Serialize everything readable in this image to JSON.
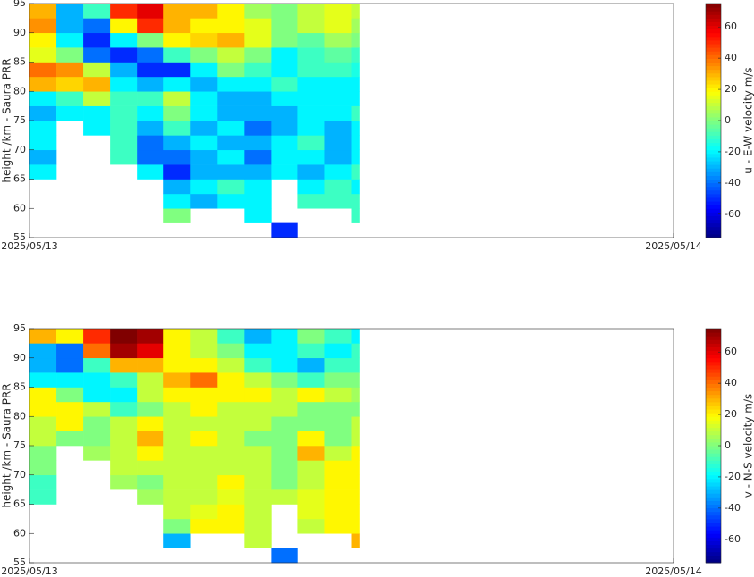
{
  "chart_data": [
    {
      "type": "heatmap",
      "y_label": "height /km - Saura PRR",
      "colorbar_label": "u - E-W velocity m/s",
      "colormap": "jet",
      "xlim": [
        0,
        24
      ],
      "xticks": [
        {
          "value": 0,
          "label": "2025/05/13"
        },
        {
          "value": 24,
          "label": "2025/05/14"
        }
      ],
      "ylim": [
        55,
        95
      ],
      "yticks": [
        55,
        60,
        65,
        70,
        75,
        80,
        85,
        90,
        95
      ],
      "clim": [
        -75,
        75
      ],
      "cticks": [
        -60,
        -40,
        -20,
        0,
        20,
        40,
        60
      ],
      "x_bins": [
        0,
        1,
        2,
        3,
        4,
        5,
        6,
        7,
        8,
        9,
        10,
        11,
        12,
        12.3
      ],
      "y_bins": [
        55,
        57.5,
        60,
        62.5,
        65,
        67.5,
        70,
        72.5,
        75,
        77.5,
        80,
        82.5,
        85,
        87.5,
        90,
        92.5,
        95
      ],
      "values": [
        [
          null,
          null,
          null,
          null,
          null,
          null,
          null,
          null,
          null,
          -50,
          null,
          null,
          null
        ],
        [
          null,
          null,
          null,
          null,
          null,
          0,
          null,
          null,
          -20,
          null,
          null,
          null,
          -10
        ],
        [
          null,
          null,
          null,
          null,
          null,
          -20,
          -30,
          -20,
          -20,
          null,
          -10,
          -10,
          -10
        ],
        [
          null,
          null,
          null,
          null,
          null,
          -30,
          -20,
          -10,
          -20,
          null,
          -20,
          -10,
          -20
        ],
        [
          -20,
          null,
          null,
          null,
          -20,
          -50,
          -30,
          -30,
          -30,
          -20,
          -30,
          -20,
          -10
        ],
        [
          -30,
          null,
          null,
          -10,
          -40,
          -40,
          -30,
          -20,
          -40,
          -20,
          -20,
          -30,
          -20
        ],
        [
          -20,
          null,
          null,
          -10,
          -40,
          -30,
          -20,
          -30,
          -30,
          -20,
          -10,
          -30,
          -20
        ],
        [
          -20,
          null,
          -20,
          -10,
          -30,
          -10,
          -30,
          -20,
          -40,
          -30,
          -20,
          -30,
          -20
        ],
        [
          -30,
          -20,
          -20,
          -10,
          -20,
          0,
          -20,
          -30,
          -30,
          -30,
          -20,
          -20,
          -10
        ],
        [
          -20,
          -10,
          10,
          -10,
          -10,
          10,
          -20,
          -30,
          -30,
          -20,
          -20,
          -20,
          -20
        ],
        [
          30,
          25,
          30,
          -20,
          -30,
          -20,
          -30,
          -20,
          -20,
          -10,
          -20,
          -20,
          -20
        ],
        [
          40,
          35,
          10,
          -30,
          -50,
          -50,
          -20,
          0,
          -10,
          -20,
          -10,
          -10,
          -15
        ],
        [
          15,
          0,
          -40,
          -50,
          -40,
          -10,
          0,
          10,
          0,
          -20,
          -10,
          -5,
          -10
        ],
        [
          20,
          -20,
          -50,
          -20,
          0,
          20,
          25,
          30,
          15,
          0,
          -5,
          5,
          0
        ],
        [
          35,
          -30,
          -40,
          20,
          50,
          30,
          20,
          20,
          15,
          0,
          10,
          15,
          5
        ],
        [
          30,
          -30,
          -10,
          50,
          60,
          30,
          30,
          20,
          5,
          0,
          10,
          15,
          10
        ]
      ]
    },
    {
      "type": "heatmap",
      "y_label": "height /km - Saura PRR",
      "colorbar_label": "v - N-S velocity m/s",
      "colormap": "jet",
      "xlim": [
        0,
        24
      ],
      "xticks": [
        {
          "value": 0,
          "label": "2025/05/13"
        },
        {
          "value": 24,
          "label": "2025/05/14"
        }
      ],
      "ylim": [
        55,
        95
      ],
      "yticks": [
        55,
        60,
        65,
        70,
        75,
        80,
        85,
        90,
        95
      ],
      "clim": [
        -75,
        75
      ],
      "cticks": [
        -60,
        -40,
        -20,
        0,
        20,
        40,
        60
      ],
      "x_bins": [
        0,
        1,
        2,
        3,
        4,
        5,
        6,
        7,
        8,
        9,
        10,
        11,
        12,
        12.3
      ],
      "y_bins": [
        55,
        57.5,
        60,
        62.5,
        65,
        67.5,
        70,
        72.5,
        75,
        77.5,
        80,
        82.5,
        85,
        87.5,
        90,
        92.5,
        95
      ],
      "values": [
        [
          null,
          null,
          null,
          null,
          null,
          null,
          null,
          null,
          null,
          -40,
          null,
          null,
          null
        ],
        [
          null,
          null,
          null,
          null,
          null,
          -30,
          null,
          null,
          10,
          null,
          null,
          null,
          30
        ],
        [
          null,
          null,
          null,
          null,
          null,
          0,
          20,
          20,
          10,
          null,
          10,
          20,
          20
        ],
        [
          null,
          null,
          null,
          null,
          null,
          10,
          15,
          20,
          10,
          null,
          15,
          20,
          20
        ],
        [
          -10,
          null,
          null,
          null,
          5,
          10,
          10,
          15,
          10,
          10,
          15,
          20,
          20
        ],
        [
          -10,
          null,
          null,
          5,
          0,
          10,
          10,
          20,
          10,
          0,
          10,
          20,
          20
        ],
        [
          0,
          null,
          null,
          10,
          10,
          10,
          10,
          10,
          10,
          0,
          10,
          20,
          20
        ],
        [
          0,
          null,
          5,
          10,
          20,
          10,
          10,
          10,
          10,
          0,
          30,
          10,
          20
        ],
        [
          10,
          0,
          0,
          10,
          30,
          10,
          20,
          10,
          0,
          0,
          20,
          0,
          10
        ],
        [
          10,
          20,
          0,
          10,
          20,
          10,
          10,
          10,
          10,
          0,
          0,
          0,
          10
        ],
        [
          20,
          20,
          10,
          -10,
          0,
          10,
          20,
          10,
          10,
          10,
          0,
          0,
          0
        ],
        [
          20,
          0,
          -20,
          -20,
          10,
          20,
          20,
          20,
          20,
          10,
          20,
          10,
          5
        ],
        [
          -20,
          -20,
          -20,
          -10,
          10,
          30,
          40,
          20,
          10,
          0,
          -10,
          0,
          0
        ],
        [
          -30,
          -40,
          -10,
          30,
          30,
          20,
          20,
          10,
          -10,
          -20,
          -30,
          -10,
          -10
        ],
        [
          -30,
          -40,
          40,
          70,
          60,
          20,
          10,
          0,
          -20,
          -20,
          -10,
          -20,
          -10
        ],
        [
          30,
          20,
          50,
          75,
          70,
          20,
          10,
          -10,
          -30,
          -20,
          0,
          -10,
          -20
        ]
      ]
    }
  ]
}
